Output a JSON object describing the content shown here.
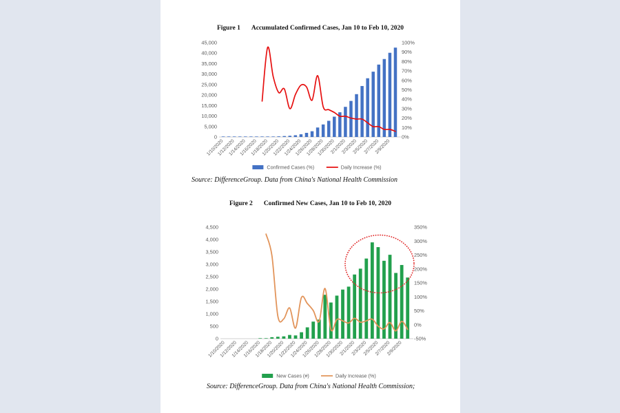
{
  "page": {
    "background": "#e1e6ef",
    "panel_background": "#ffffff"
  },
  "chart_data": [
    {
      "name": "figure-1",
      "type": "bar",
      "combo": "bar+line",
      "title_label": "Figure 1",
      "title": "Accumulated Confirmed Cases, Jan 10 to Feb 10, 2020",
      "source": "Source: DifferenceGroup. Data from China's National Health Commission",
      "legend_position": "bottom",
      "grid": "off",
      "categories": [
        "1/10/2020",
        "1/11/2020",
        "1/12/2020",
        "1/13/2020",
        "1/14/2020",
        "1/15/2020",
        "1/16/2020",
        "1/17/2020",
        "1/18/2020",
        "1/19/2020",
        "1/20/2020",
        "1/21/2020",
        "1/22/2020",
        "1/23/2020",
        "1/24/2020",
        "1/25/2020",
        "1/26/2020",
        "1/27/2020",
        "1/28/2020",
        "1/29/2020",
        "1/30/2020",
        "1/31/2020",
        "2/1/2020",
        "2/2/2020",
        "2/3/2020",
        "2/4/2020",
        "2/5/2020",
        "2/6/2020",
        "2/7/2020",
        "2/8/2020",
        "2/9/2020",
        "2/10/2020"
      ],
      "x_tick_labels": [
        "1/10/2020",
        "1/12/2020",
        "1/14/2020",
        "1/16/2020",
        "1/18/2020",
        "1/20/2020",
        "1/22/2020",
        "1/24/2020",
        "1/26/2020",
        "1/28/2020",
        "1/30/2020",
        "2/1/2020",
        "2/3/2020",
        "2/5/2020",
        "2/7/2020",
        "2/9/2020"
      ],
      "bar_series": {
        "name": "Confirmed Cases (%)",
        "color": "#4472C4",
        "axis": "left",
        "values": [
          41,
          41,
          41,
          41,
          41,
          41,
          45,
          62,
          121,
          198,
          291,
          440,
          571,
          830,
          1287,
          1975,
          2744,
          4515,
          5974,
          7711,
          9692,
          11791,
          14380,
          17205,
          20438,
          24324,
          28018,
          31161,
          34546,
          37198,
          40171,
          42638
        ]
      },
      "line_series": {
        "name": "Daily Increase (%)",
        "color": "#E60F0F",
        "axis": "right",
        "values": [
          null,
          null,
          null,
          null,
          null,
          null,
          null,
          38,
          95,
          64,
          47,
          51,
          30,
          45,
          55,
          53,
          39,
          65,
          32,
          29,
          26,
          22,
          22,
          20,
          19,
          19,
          15,
          11,
          11,
          8,
          8,
          6
        ]
      },
      "y_left_axis": {
        "min": 0,
        "max": 45000,
        "step": 5000,
        "tick_labels": [
          "45,000",
          "40,000",
          "35,000",
          "30,000",
          "25,000",
          "20,000",
          "15,000",
          "10,000",
          "5,000",
          "0"
        ]
      },
      "y_right_axis": {
        "min": 0,
        "max": 100,
        "step": 10,
        "tick_labels": [
          "100%",
          "90%",
          "80%",
          "70%",
          "60%",
          "50%",
          "40%",
          "30%",
          "20%",
          "10%",
          "0%"
        ]
      }
    },
    {
      "name": "figure-2",
      "type": "bar",
      "combo": "bar+line",
      "title_label": "Figure 2",
      "title": "Confirmed New Cases, Jan 10 to Feb 10, 2020",
      "source": "Source: DifferenceGroup. Data from China's National Health Commission;",
      "legend_position": "bottom",
      "grid": "off",
      "categories": [
        "1/10/2020",
        "1/11/2020",
        "1/12/2020",
        "1/13/2020",
        "1/14/2020",
        "1/15/2020",
        "1/16/2020",
        "1/17/2020",
        "1/18/2020",
        "1/19/2020",
        "1/20/2020",
        "1/21/2020",
        "1/22/2020",
        "1/23/2020",
        "1/24/2020",
        "1/25/2020",
        "1/26/2020",
        "1/27/2020",
        "1/28/2020",
        "1/29/2020",
        "1/30/2020",
        "1/31/2020",
        "2/1/2020",
        "2/2/2020",
        "2/3/2020",
        "2/4/2020",
        "2/5/2020",
        "2/6/2020",
        "2/7/2020",
        "2/8/2020",
        "2/9/2020",
        "2/10/2020"
      ],
      "x_tick_labels": [
        "1/10/2020",
        "1/12/2020",
        "1/14/2020",
        "1/16/2020",
        "1/18/2020",
        "1/20/2020",
        "1/22/2020",
        "1/24/2020",
        "1/26/2020",
        "1/28/2020",
        "1/30/2020",
        "2/1/2020",
        "2/3/2020",
        "2/5/2020",
        "2/7/2020",
        "2/9/2020"
      ],
      "bar_series": {
        "name": "New Cases (#)",
        "color": "#22A04D",
        "axis": "left",
        "values": [
          0,
          0,
          0,
          0,
          0,
          0,
          4,
          17,
          59,
          77,
          93,
          149,
          131,
          259,
          457,
          688,
          769,
          1771,
          1459,
          1737,
          1981,
          2099,
          2589,
          2825,
          3233,
          3886,
          3694,
          3143,
          3385,
          2652,
          2973,
          2467
        ]
      },
      "line_series": {
        "name": "Daily Increase (%)",
        "color": "#E2945A",
        "axis": "right",
        "values": [
          null,
          null,
          null,
          null,
          null,
          null,
          null,
          325,
          247,
          31,
          21,
          60,
          -12,
          98,
          76,
          51,
          12,
          130,
          -18,
          19,
          14,
          6,
          23,
          9,
          14,
          20,
          -5,
          -15,
          8,
          -22,
          12,
          -17
        ]
      },
      "y_left_axis": {
        "min": 0,
        "max": 4500,
        "step": 500,
        "tick_labels": [
          "4,500",
          "4,000",
          "3,500",
          "3,000",
          "2,500",
          "2,000",
          "1,500",
          "1,000",
          "500",
          "0"
        ]
      },
      "y_right_axis": {
        "min": -50,
        "max": 350,
        "step": 50,
        "tick_labels": [
          "350%",
          "300%",
          "250%",
          "200%",
          "150%",
          "100%",
          "50%",
          "0%",
          "-50%"
        ]
      },
      "annotation": {
        "type": "dotted-ellipse",
        "color": "#E02424"
      }
    }
  ]
}
